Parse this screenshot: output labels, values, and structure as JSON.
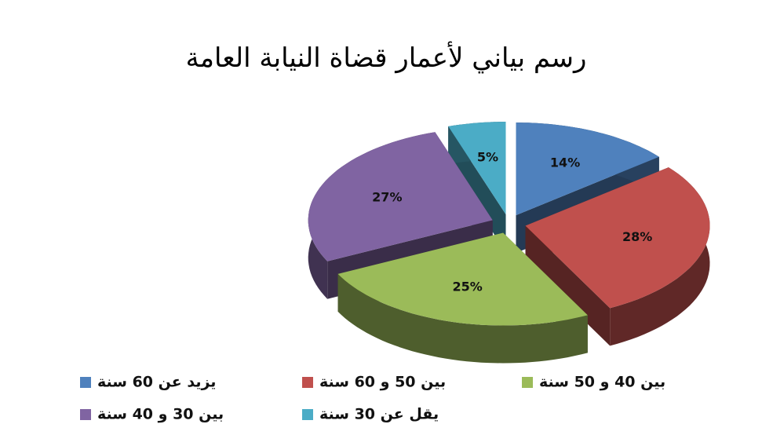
{
  "chart_data": {
    "type": "pie",
    "title": "رسم بياني لأعمار قضاة النيابة العامة",
    "categories": [
      "يزيد عن 60 سنة",
      "بين 50 و 60 سنة",
      "بين 40 و 50 سنة",
      "بين 30 و 40 سنة",
      "يقل عن 30 سنة"
    ],
    "values": [
      14,
      28,
      25,
      27,
      5
    ],
    "value_labels": [
      "14%",
      "28%",
      "25%",
      "27%",
      "5%"
    ],
    "colors": [
      "#4f81bd",
      "#c0504d",
      "#9bbb59",
      "#8064a2",
      "#4bacc6"
    ]
  }
}
